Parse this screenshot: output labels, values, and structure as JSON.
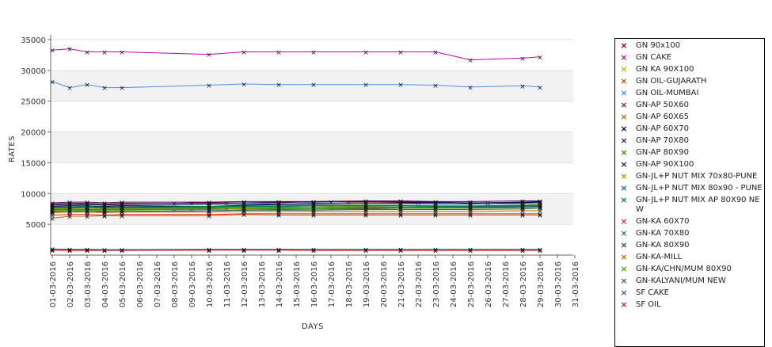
{
  "chart_data": {
    "type": "line",
    "xlabel": "DAYS",
    "ylabel": "RATES",
    "ylim": [
      0,
      35000
    ],
    "yticks": [
      5000,
      10000,
      15000,
      20000,
      25000,
      30000,
      35000
    ],
    "categories": [
      "01-03-2016",
      "02-03-2016",
      "03-03-2016",
      "04-03-2016",
      "05-03-2016",
      "06-03-2016",
      "07-03-2016",
      "08-03-2016",
      "09-03-2016",
      "10-03-2016",
      "11-03-2016",
      "12-03-2016",
      "13-03-2016",
      "14-03-2016",
      "15-03-2016",
      "16-03-2016",
      "17-03-2016",
      "18-03-2016",
      "19-03-2016",
      "20-03-2016",
      "21-03-2016",
      "22-03-2016",
      "23-03-2016",
      "24-03-2016",
      "25-03-2016",
      "26-03-2016",
      "27-03-2016",
      "28-03-2016",
      "29-03-2016",
      "30-03-2016",
      "31-03-2016"
    ],
    "grid_bands": true,
    "legend_position": "right",
    "series": [
      {
        "name": "GN 90x100",
        "color": "#8b0000",
        "x": [
          0,
          1,
          2,
          3,
          4,
          7,
          8,
          9,
          10,
          11,
          13,
          15,
          16,
          17,
          18,
          21,
          22,
          24,
          25,
          27,
          28
        ],
        "values": [
          8200,
          8300,
          8300,
          8200,
          8300,
          8400,
          8500,
          8500,
          8500,
          8500,
          8500,
          8700,
          8700,
          8600,
          8600,
          8600,
          8600,
          8400,
          8500,
          8600,
          8700
        ]
      },
      {
        "name": "GN CAKE",
        "color": "#c000c0",
        "x": [
          0,
          1,
          2,
          3,
          4,
          9,
          11,
          13,
          15,
          18,
          20,
          22,
          24,
          27,
          28
        ],
        "values": [
          33300,
          33500,
          33000,
          33000,
          33000,
          32600,
          33000,
          33000,
          33000,
          33000,
          33000,
          33000,
          31700,
          32000,
          32200
        ]
      },
      {
        "name": "GN KA 90X100",
        "color": "#d4b000",
        "x": [
          0,
          1,
          2,
          3,
          4,
          7,
          8,
          9,
          10,
          11,
          13,
          15,
          16,
          17,
          18,
          21,
          22,
          24,
          25,
          27,
          28
        ],
        "values": [
          7200,
          7300,
          7400,
          7300,
          7400,
          7400,
          7500,
          7500,
          7600,
          7600,
          7700,
          7800,
          7800,
          7900,
          8000,
          8000,
          7900,
          7900,
          8000,
          8100,
          8200
        ]
      },
      {
        "name": "GN OIL-GUJARATH",
        "color": "#b05a00",
        "x": [
          0,
          1,
          2,
          3,
          4,
          9,
          11,
          13,
          15,
          18,
          20,
          22,
          24,
          27,
          28
        ],
        "values": [
          900,
          850,
          850,
          800,
          750,
          850,
          850,
          850,
          800,
          800,
          800,
          800,
          800,
          800,
          800
        ]
      },
      {
        "name": "GN OIL-MUMBAI",
        "color": "#4a90e2",
        "x": [
          0,
          1,
          2,
          3,
          4,
          9,
          11,
          13,
          15,
          18,
          20,
          22,
          24,
          27,
          28
        ],
        "values": [
          28200,
          27200,
          27700,
          27200,
          27200,
          27600,
          27800,
          27700,
          27700,
          27700,
          27700,
          27600,
          27300,
          27500,
          27300
        ]
      },
      {
        "name": "GN-AP 50X60",
        "color": "#8b1a4a",
        "x": [
          0,
          1,
          2,
          3,
          4,
          9,
          11,
          13,
          15,
          18,
          20,
          22,
          24,
          27,
          28
        ],
        "values": [
          7000,
          7100,
          7000,
          7000,
          7100,
          7200,
          7300,
          7400,
          7500,
          7500,
          7600,
          7600,
          7700,
          7800,
          7900
        ]
      },
      {
        "name": "GN-AP 60X65",
        "color": "#c86400",
        "x": [
          0,
          1,
          2,
          3,
          4,
          9,
          11,
          13,
          15,
          18,
          20,
          22,
          24,
          27,
          28
        ],
        "values": [
          6000,
          6300,
          6300,
          6400,
          6400,
          6400,
          6600,
          6500,
          6500,
          6500,
          6500,
          6500,
          6500,
          6500,
          6500
        ]
      },
      {
        "name": "GN-AP 60X70",
        "color": "#000060",
        "x": [
          0,
          1,
          2,
          3,
          4,
          9,
          11,
          13,
          15,
          18,
          20,
          22,
          24,
          27,
          28
        ],
        "values": [
          7900,
          8000,
          8000,
          7900,
          8000,
          7900,
          8100,
          8200,
          8300,
          8400,
          8500,
          8500,
          8500,
          8500,
          8600
        ]
      },
      {
        "name": "GN-AP 70X80",
        "color": "#5a0a5a",
        "x": [
          0,
          1,
          2,
          3,
          4,
          9,
          11,
          13,
          15,
          18,
          20,
          22,
          24,
          27,
          28
        ],
        "values": [
          8500,
          8600,
          8600,
          8500,
          8600,
          8600,
          8700,
          8700,
          8700,
          8800,
          8800,
          8700,
          8700,
          8800,
          8800
        ]
      },
      {
        "name": "GN-AP 80X90",
        "color": "#2e8b00",
        "x": [
          0,
          1,
          2,
          3,
          4,
          9,
          11,
          13,
          15,
          18,
          20,
          22,
          24,
          27,
          28
        ],
        "values": [
          7600,
          7600,
          7700,
          7600,
          7600,
          7700,
          7800,
          7800,
          7800,
          7800,
          7800,
          7800,
          7900,
          8000,
          8100
        ]
      },
      {
        "name": "GN-AP 90X100",
        "color": "#1a1a60",
        "x": [
          0,
          1,
          2,
          3,
          4,
          9,
          11,
          13,
          15,
          18,
          20,
          22,
          24,
          27,
          28
        ],
        "values": [
          8300,
          8400,
          8400,
          8300,
          8400,
          8400,
          8500,
          8600,
          8600,
          8700,
          8700,
          8600,
          8500,
          8600,
          8700
        ]
      },
      {
        "name": "GN-JL+P NUT MIX 70x80-PUNE",
        "color": "#a0a000",
        "x": [
          0,
          1,
          2,
          3,
          4,
          9,
          11,
          13,
          15,
          18,
          20,
          22,
          24,
          27,
          28
        ],
        "values": [
          7500,
          7500,
          7500,
          7500,
          7500,
          7600,
          7700,
          7700,
          7800,
          7900,
          8000,
          8000,
          8000,
          8100,
          8100
        ]
      },
      {
        "name": "GN-JL+P NUT MIX 80x90 - PUNE",
        "color": "#007a5a",
        "x": [
          0,
          1,
          2,
          3,
          4,
          9,
          11,
          13,
          15,
          18,
          20,
          22,
          24,
          27,
          28
        ],
        "values": [
          7700,
          7700,
          7800,
          7700,
          7700,
          7800,
          7900,
          7900,
          8000,
          8000,
          8000,
          7900,
          7900,
          8000,
          8100
        ]
      },
      {
        "name": "GN-JL+P NUT MIX AP 80X90 NEW",
        "color": "#008a3a",
        "x": [
          0,
          1,
          2,
          3,
          4,
          9,
          11,
          13,
          15,
          18,
          20,
          22,
          24,
          27,
          28
        ],
        "values": [
          7800,
          7800,
          7900,
          7800,
          7800,
          7900,
          8000,
          8000,
          8100,
          8100,
          8100,
          8000,
          8000,
          8100,
          8200
        ]
      },
      {
        "name": "GN-KA 60X70",
        "color": "#d03030",
        "x": [
          0,
          1,
          2,
          3,
          4,
          9,
          11,
          13,
          15,
          18,
          20,
          22,
          24,
          27,
          28
        ],
        "values": [
          6500,
          6600,
          6600,
          6500,
          6600,
          6600,
          6700,
          6700,
          6700,
          6700,
          6700,
          6700,
          6700,
          6700,
          6700
        ]
      },
      {
        "name": "GN-KA 70X80",
        "color": "#207a7a",
        "x": [
          0,
          1,
          2,
          3,
          4,
          9,
          11,
          13,
          15,
          18,
          20,
          22,
          24,
          27,
          28
        ],
        "values": [
          7400,
          7400,
          7400,
          7400,
          7400,
          7500,
          7500,
          7600,
          7600,
          7700,
          7700,
          7700,
          7800,
          7900,
          8000
        ]
      },
      {
        "name": "GN-KA 80X90",
        "color": "#204a8a",
        "x": [
          0,
          1,
          2,
          3,
          4,
          9,
          11,
          13,
          15,
          18,
          20,
          22,
          24,
          27,
          28
        ],
        "values": [
          8100,
          8100,
          8200,
          8100,
          8100,
          8200,
          8300,
          8300,
          8400,
          8400,
          8400,
          8300,
          8300,
          8400,
          8500
        ]
      },
      {
        "name": "GN-KA-MILL",
        "color": "#c86a00",
        "x": [
          0,
          1,
          2,
          3,
          4,
          9,
          11,
          13,
          15,
          18,
          20,
          22,
          24,
          27,
          28
        ],
        "values": [
          6900,
          7000,
          7000,
          6900,
          7000,
          7000,
          7100,
          7100,
          7100,
          7100,
          7100,
          7100,
          7100,
          7200,
          7200
        ]
      },
      {
        "name": "GN-KA/CHN/MUM 80X90",
        "color": "#4aa000",
        "x": [
          0,
          1,
          2,
          3,
          4,
          9,
          11,
          13,
          15,
          18,
          20,
          22,
          24,
          27,
          28
        ],
        "values": [
          7300,
          7300,
          7300,
          7300,
          7300,
          7400,
          7500,
          7500,
          7500,
          7600,
          7600,
          7600,
          7600,
          7700,
          7800
        ]
      },
      {
        "name": "GN-KALYANI/MUM NEW",
        "color": "#2a6a5a",
        "x": [
          0,
          1,
          2,
          3,
          4,
          9,
          11,
          13,
          15,
          18,
          20,
          22,
          24,
          27,
          28
        ],
        "values": [
          7100,
          7100,
          7200,
          7100,
          7100,
          7200,
          7300,
          7300,
          7300,
          7400,
          7400,
          7400,
          7400,
          7500,
          7600
        ]
      },
      {
        "name": "SF CAKE",
        "color": "#3060c0",
        "x": [
          0,
          1,
          2,
          3,
          4,
          9,
          11,
          13,
          15,
          18,
          20,
          22,
          24,
          27,
          28
        ],
        "values": [
          1000,
          950,
          950,
          900,
          900,
          950,
          950,
          950,
          950,
          950,
          950,
          950,
          950,
          950,
          950
        ]
      },
      {
        "name": "SF OIL",
        "color": "#c02020",
        "x": [
          0,
          1,
          2,
          3,
          4,
          9,
          11,
          13,
          15,
          18,
          20,
          22,
          24,
          27,
          28
        ],
        "values": [
          800,
          750,
          750,
          750,
          750,
          800,
          800,
          800,
          750,
          750,
          750,
          750,
          750,
          750,
          750
        ]
      }
    ]
  }
}
